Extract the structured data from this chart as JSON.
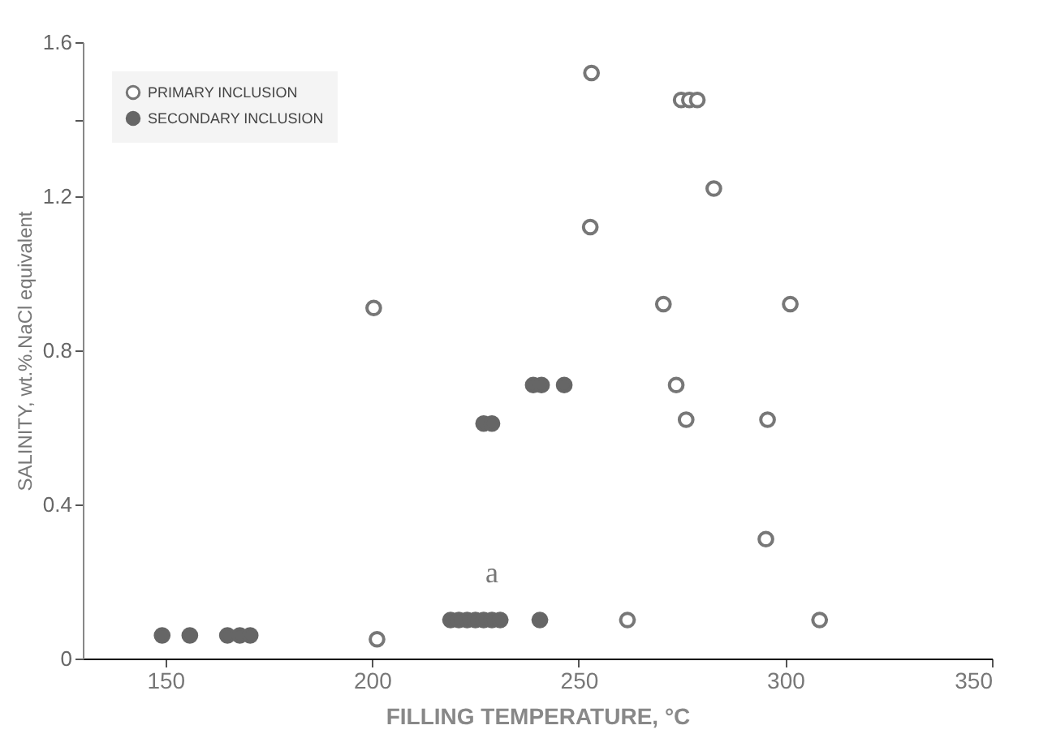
{
  "chart_data": {
    "type": "scatter",
    "xlabel": "FILLING TEMPERATURE, °C",
    "ylabel": "SALINITY, wt.%.NaCl equivalent",
    "xlim": [
      130,
      350
    ],
    "xticks": [
      150,
      200,
      250,
      300,
      350
    ],
    "ylim": [
      0,
      1.6
    ],
    "yticks": [
      0,
      0.4,
      0.8,
      1.2,
      {
        "value": 1.4,
        "label": null
      },
      1.6
    ],
    "grid": false,
    "legend": "top left",
    "marker": "circle",
    "annotations": [
      "a"
    ],
    "series": [
      {
        "name": "PRIMARY INCLUSION",
        "color": "#777777",
        "x": [
          253.1,
          274.8,
          276.8,
          278.7,
          282.7,
          252.8,
          200.4,
          270.5,
          301.2,
          273.6,
          276,
          295.7,
          295.3,
          261.8,
          308.3,
          201.2
        ],
        "values": [
          1.52,
          1.45,
          1.45,
          1.45,
          1.22,
          1.12,
          0.91,
          0.92,
          0.92,
          0.71,
          0.62,
          0.62,
          0.31,
          0.1,
          0.1,
          0.05
        ]
      },
      {
        "name": "SECONDARY INCLUSION",
        "color": "#666666",
        "x": [
          239,
          241,
          246.5,
          227,
          229,
          149.2,
          155.9,
          165,
          168,
          170.5,
          219,
          221,
          223,
          225,
          227,
          229,
          231,
          240.6
        ],
        "values": [
          0.71,
          0.71,
          0.71,
          0.61,
          0.61,
          0.06,
          0.06,
          0.06,
          0.06,
          0.06,
          0.1,
          0.1,
          0.1,
          0.1,
          0.1,
          0.1,
          0.1,
          0.1
        ]
      }
    ]
  }
}
